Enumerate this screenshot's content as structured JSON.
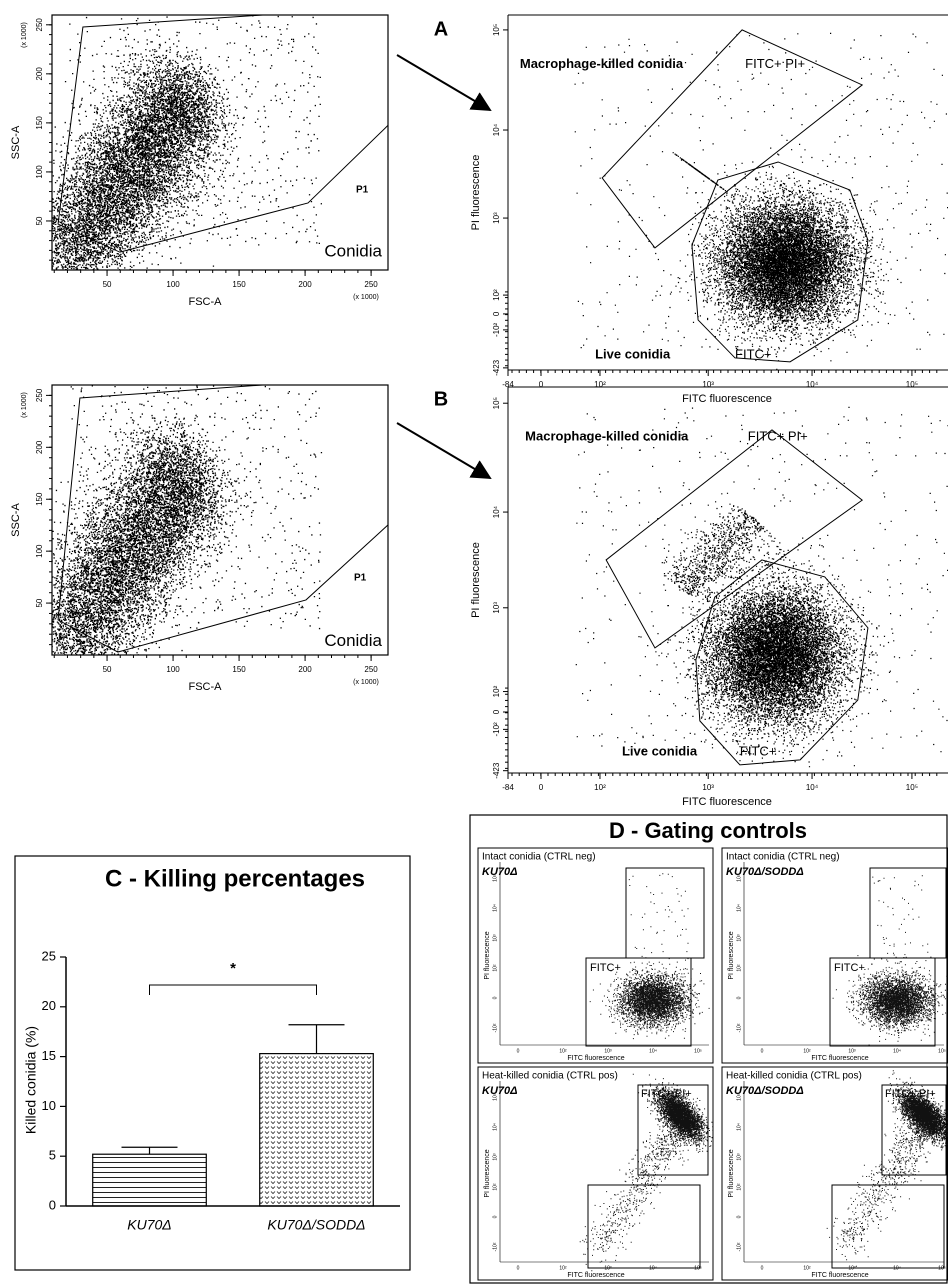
{
  "scatter_rows": [
    {
      "panel": "A",
      "fsc": {
        "x_label": "FSC-A",
        "y_label": "SSC-A",
        "x_unit": "(x 1000)",
        "y_unit": "(x 1000)",
        "x_ticks": [
          50,
          100,
          150,
          200,
          250
        ],
        "y_ticks": [
          50,
          100,
          150,
          200,
          250
        ],
        "gate": "P1",
        "population": "Conidia"
      },
      "fl": {
        "x_label": "FITC fluorescence",
        "y_label": "PI fluorescence",
        "x_ticks": [
          "-84",
          "0",
          "10²",
          "10³",
          "10⁴",
          "10⁵"
        ],
        "y_ticks": [
          "10⁵",
          "10⁴",
          "10³",
          "10²",
          "0",
          "-10²",
          "-423"
        ],
        "dead_gate": "Macrophage-killed conidia",
        "dead_tag": "FITC+ PI+",
        "live_gate": "Live conidia",
        "live_tag": "FITC+"
      }
    },
    {
      "panel": "B",
      "fsc": {
        "x_label": "FSC-A",
        "y_label": "SSC-A",
        "x_unit": "(x 1000)",
        "y_unit": "(x 1000)",
        "x_ticks": [
          50,
          100,
          150,
          200,
          250
        ],
        "y_ticks": [
          50,
          100,
          150,
          200,
          250
        ],
        "gate": "P1",
        "population": "Conidia"
      },
      "fl": {
        "x_label": "FITC fluorescence",
        "y_label": "PI fluorescence",
        "x_ticks": [
          "-84",
          "0",
          "10²",
          "10³",
          "10⁴",
          "10⁵"
        ],
        "y_ticks": [
          "10⁵",
          "10⁴",
          "10³",
          "10²",
          "0",
          "-10²",
          "-423"
        ],
        "dead_gate": "Macrophage-killed conidia",
        "dead_tag": "FITC+ PI+",
        "live_gate": "Live conidia",
        "live_tag": "FITC+"
      }
    }
  ],
  "chart_data": {
    "type": "bar",
    "title": "C - Killing percentages",
    "y_label": "Killed conidia (%)",
    "categories": [
      "KU70Δ",
      "KU70Δ/SODDΔ"
    ],
    "values": [
      5.2,
      15.3
    ],
    "errors": [
      0.7,
      2.9
    ],
    "color": "#222222",
    "ylim": [
      0,
      25
    ],
    "yticks": [
      0,
      5,
      10,
      15,
      20,
      25
    ],
    "annotation": "*"
  },
  "gating_controls": {
    "title": "D - Gating controls",
    "x_label": "FITC fluorescence",
    "y_label": "PI fluorescence",
    "x_ticks": [
      "0",
      "10²",
      "10³",
      "10⁴",
      "10⁵"
    ],
    "y_ticks": [
      "10⁵",
      "10⁴",
      "10³",
      "10²",
      "0",
      "-10²"
    ],
    "plots": [
      {
        "condition": "Intact conidia (CTRL neg)",
        "strain": "KU70Δ",
        "gate": "FITC+"
      },
      {
        "condition": "Intact conidia (CTRL neg)",
        "strain": "KU70Δ/SODDΔ",
        "gate": "FITC+"
      },
      {
        "condition": "Heat-killed conidia (CTRL pos)",
        "strain": "KU70Δ",
        "gate": "FITC+ PI+"
      },
      {
        "condition": "Heat-killed conidia (CTRL pos)",
        "strain": "KU70Δ/SODDΔ",
        "gate": "FITC+ PI+"
      }
    ]
  }
}
